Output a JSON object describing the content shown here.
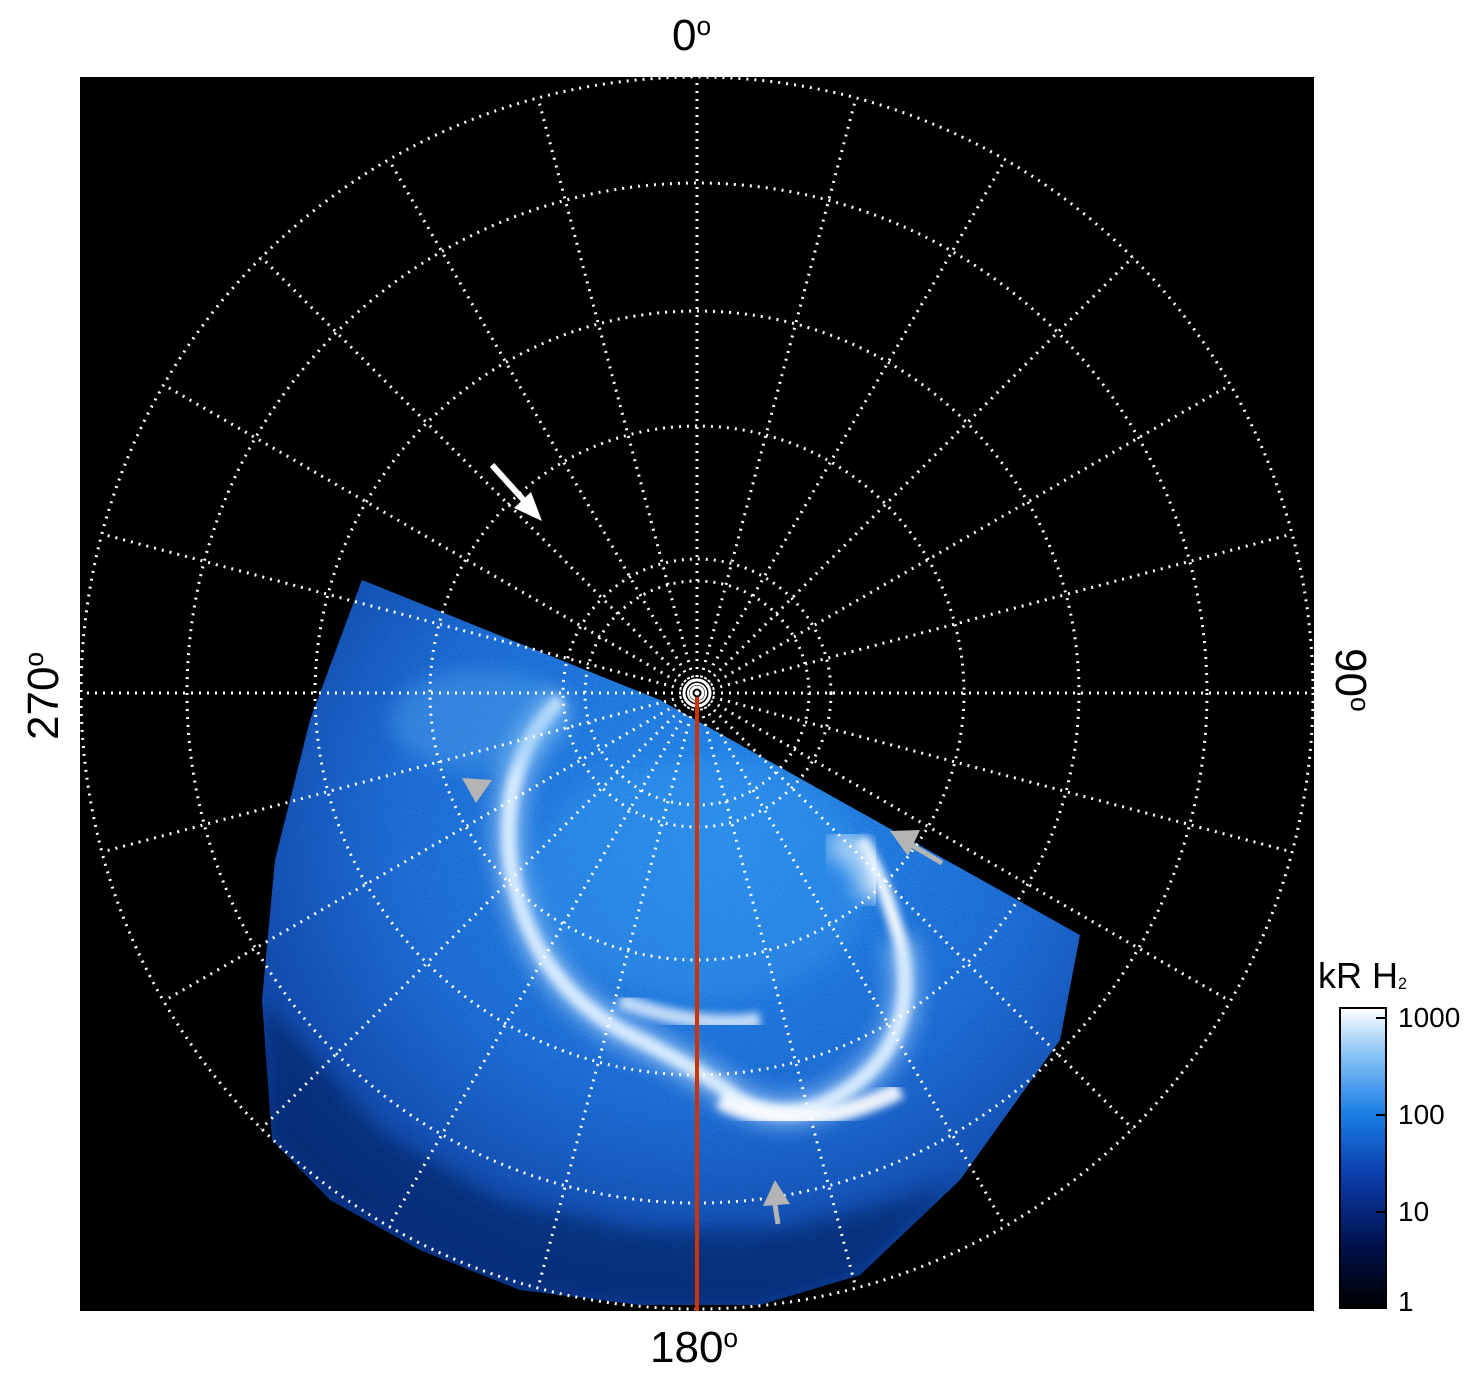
{
  "image": {
    "description_colors": {
      "background": "#000000",
      "grid": "#ffffff",
      "aurora_low": "#001a66",
      "aurora_mid": "#1a7fe6",
      "aurora_high": "#eef6ff",
      "meridian_line": "#cc3300",
      "arrow_white": "#ffffff",
      "arrow_gray": "#b4b4b4"
    }
  },
  "labels": {
    "top": "0",
    "bottom": "180",
    "left": "270",
    "right": "90",
    "degree": "o"
  },
  "colorbar": {
    "title_main": "kR H",
    "title_sub": "2",
    "ticks": [
      "1000",
      "100",
      "10",
      "1"
    ],
    "scale": "log"
  }
}
